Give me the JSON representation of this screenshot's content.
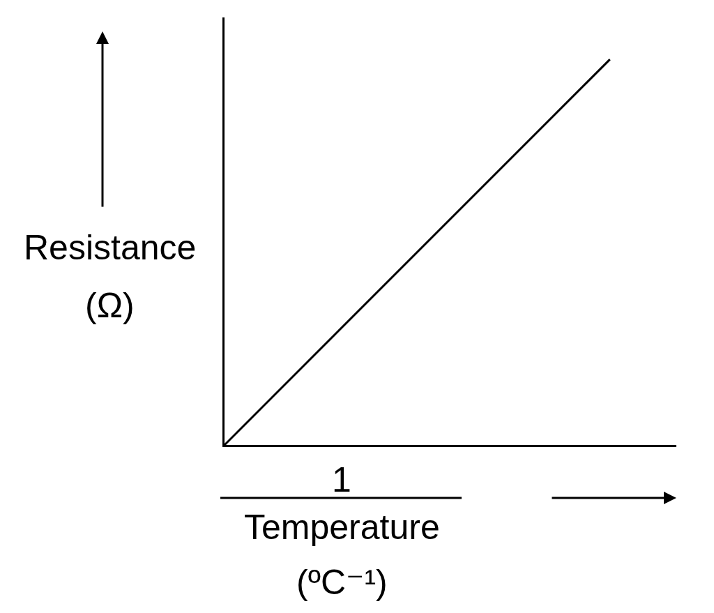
{
  "chart_data": {
    "type": "line",
    "x_label": {
      "numerator": "1",
      "denominator": "Temperature",
      "unit": "(ºC⁻¹)"
    },
    "y_label": [
      "Resistance",
      "(Ω)"
    ],
    "x": [
      0,
      0.853
    ],
    "values": [
      0,
      0.902
    ],
    "color": "#000000",
    "xlim": [
      0,
      1
    ],
    "ylim": [
      0,
      1
    ],
    "xticks": [],
    "yticks": [],
    "tick_labels": false,
    "grid": false
  }
}
